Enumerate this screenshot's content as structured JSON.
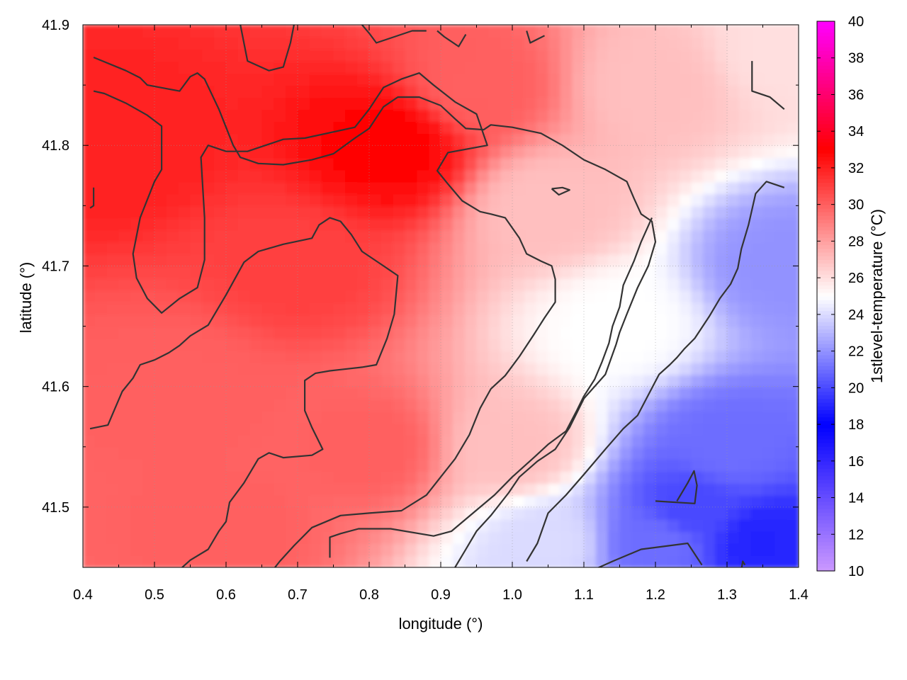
{
  "chart_data": {
    "type": "heatmap",
    "title": "",
    "xlabel": "longitude (°)",
    "ylabel": "latitude (°)",
    "colorbar_label": "1stlevel-temperature (°C)",
    "xlim": [
      0.4,
      1.4
    ],
    "ylim": [
      41.45,
      41.9
    ],
    "x_ticks": [
      "0.4",
      "0.5",
      "0.6",
      "0.7",
      "0.8",
      "0.9",
      "1.0",
      "1.1",
      "1.2",
      "1.3",
      "1.4"
    ],
    "y_ticks": [
      "41.5",
      "41.6",
      "41.7",
      "41.8",
      "41.9"
    ],
    "colorbar_range": [
      10,
      40
    ],
    "colorbar_ticks": [
      "10",
      "12",
      "14",
      "16",
      "18",
      "20",
      "22",
      "24",
      "26",
      "28",
      "30",
      "32",
      "34",
      "36",
      "38",
      "40"
    ],
    "colorscale": [
      {
        "value": 10,
        "color": "#cc99ff"
      },
      {
        "value": 18,
        "color": "#0000ff"
      },
      {
        "value": 25,
        "color": "#ffffff"
      },
      {
        "value": 33,
        "color": "#ff0000"
      },
      {
        "value": 40,
        "color": "#ff00ff"
      }
    ],
    "grid": true,
    "contour_color": "#333333",
    "temperature_field": [
      {
        "lon": 0.45,
        "lat": 41.8,
        "temp": 32
      },
      {
        "lon": 0.83,
        "lat": 41.8,
        "temp": 33
      },
      {
        "lon": 0.7,
        "lat": 41.7,
        "temp": 31
      },
      {
        "lon": 0.55,
        "lat": 41.6,
        "temp": 30
      },
      {
        "lon": 0.8,
        "lat": 41.55,
        "temp": 30
      },
      {
        "lon": 0.6,
        "lat": 41.48,
        "temp": 30
      },
      {
        "lon": 0.95,
        "lat": 41.85,
        "temp": 30
      },
      {
        "lon": 1.05,
        "lat": 41.75,
        "temp": 27
      },
      {
        "lon": 1.2,
        "lat": 41.85,
        "temp": 27
      },
      {
        "lon": 1.38,
        "lat": 41.88,
        "temp": 26
      },
      {
        "lon": 1.0,
        "lat": 41.55,
        "temp": 27
      },
      {
        "lon": 1.15,
        "lat": 41.65,
        "temp": 25
      },
      {
        "lon": 1.05,
        "lat": 41.47,
        "temp": 24
      },
      {
        "lon": 1.38,
        "lat": 41.7,
        "temp": 22
      },
      {
        "lon": 1.3,
        "lat": 41.55,
        "temp": 21
      },
      {
        "lon": 1.25,
        "lat": 41.5,
        "temp": 20
      },
      {
        "lon": 1.35,
        "lat": 41.47,
        "temp": 19
      },
      {
        "lon": 1.2,
        "lat": 41.47,
        "temp": 21
      }
    ],
    "contours": [
      [
        [
          0.415,
          41.873
        ],
        [
          0.46,
          41.862
        ],
        [
          0.48,
          41.856
        ],
        [
          0.49,
          41.85
        ],
        [
          0.535,
          41.845
        ],
        [
          0.55,
          41.857
        ],
        [
          0.56,
          41.86
        ],
        [
          0.57,
          41.855
        ],
        [
          0.59,
          41.83
        ],
        [
          0.61,
          41.8
        ],
        [
          0.62,
          41.79
        ],
        [
          0.63,
          41.788
        ],
        [
          0.645,
          41.785
        ],
        [
          0.68,
          41.784
        ],
        [
          0.72,
          41.788
        ],
        [
          0.75,
          41.793
        ],
        [
          0.78,
          41.806
        ],
        [
          0.8,
          41.814
        ],
        [
          0.82,
          41.832
        ],
        [
          0.84,
          41.84
        ],
        [
          0.87,
          41.84
        ],
        [
          0.9,
          41.833
        ],
        [
          0.92,
          41.822
        ],
        [
          0.935,
          41.814
        ],
        [
          0.96,
          41.813
        ],
        [
          0.97,
          41.817
        ],
        [
          1.0,
          41.815
        ],
        [
          1.04,
          41.81
        ],
        [
          1.07,
          41.8
        ],
        [
          1.1,
          41.788
        ],
        [
          1.13,
          41.78
        ],
        [
          1.16,
          41.77
        ],
        [
          1.17,
          41.756
        ],
        [
          1.18,
          41.743
        ],
        [
          1.195,
          41.737
        ],
        [
          1.2,
          41.72
        ],
        [
          1.19,
          41.7
        ],
        [
          1.175,
          41.682
        ],
        [
          1.16,
          41.66
        ],
        [
          1.15,
          41.645
        ],
        [
          1.145,
          41.635
        ],
        [
          1.13,
          41.61
        ],
        [
          1.1,
          41.59
        ],
        [
          1.08,
          41.566
        ],
        [
          1.06,
          41.548
        ],
        [
          1.035,
          41.538
        ],
        [
          1.01,
          41.525
        ],
        [
          0.995,
          41.512
        ],
        [
          0.97,
          41.493
        ],
        [
          0.95,
          41.48
        ],
        [
          0.935,
          41.465
        ],
        [
          0.92,
          41.45
        ]
      ],
      [
        [
          0.415,
          41.845
        ],
        [
          0.43,
          41.843
        ],
        [
          0.46,
          41.835
        ],
        [
          0.49,
          41.825
        ],
        [
          0.51,
          41.816
        ],
        [
          0.51,
          41.78
        ],
        [
          0.5,
          41.77
        ],
        [
          0.48,
          41.74
        ],
        [
          0.47,
          41.71
        ],
        [
          0.475,
          41.69
        ],
        [
          0.49,
          41.673
        ],
        [
          0.51,
          41.661
        ],
        [
          0.535,
          41.673
        ],
        [
          0.56,
          41.682
        ],
        [
          0.57,
          41.705
        ],
        [
          0.57,
          41.74
        ],
        [
          0.565,
          41.79
        ],
        [
          0.575,
          41.8
        ],
        [
          0.6,
          41.795
        ],
        [
          0.63,
          41.795
        ],
        [
          0.68,
          41.805
        ],
        [
          0.71,
          41.806
        ],
        [
          0.78,
          41.815
        ],
        [
          0.8,
          41.83
        ],
        [
          0.82,
          41.848
        ],
        [
          0.845,
          41.855
        ],
        [
          0.87,
          41.86
        ],
        [
          0.89,
          41.85
        ],
        [
          0.92,
          41.836
        ],
        [
          0.95,
          41.826
        ],
        [
          0.965,
          41.8
        ],
        [
          0.91,
          41.794
        ],
        [
          0.895,
          41.779
        ],
        [
          0.91,
          41.768
        ],
        [
          0.93,
          41.754
        ],
        [
          0.955,
          41.745
        ],
        [
          0.97,
          41.743
        ],
        [
          0.99,
          41.74
        ],
        [
          1.01,
          41.723
        ],
        [
          1.02,
          41.71
        ],
        [
          1.04,
          41.704
        ],
        [
          1.055,
          41.7
        ],
        [
          1.06,
          41.689
        ],
        [
          1.06,
          41.67
        ],
        [
          1.045,
          41.657
        ],
        [
          1.03,
          41.643
        ],
        [
          1.01,
          41.625
        ],
        [
          0.99,
          41.609
        ],
        [
          0.97,
          41.598
        ],
        [
          0.955,
          41.582
        ],
        [
          0.94,
          41.56
        ],
        [
          0.92,
          41.54
        ],
        [
          0.9,
          41.525
        ],
        [
          0.88,
          41.51
        ],
        [
          0.845,
          41.497
        ],
        [
          0.8,
          41.495
        ],
        [
          0.76,
          41.493
        ],
        [
          0.72,
          41.483
        ],
        [
          0.695,
          41.468
        ],
        [
          0.675,
          41.455
        ],
        [
          0.655,
          41.44
        ]
      ],
      [
        [
          0.41,
          41.565
        ],
        [
          0.435,
          41.568
        ],
        [
          0.445,
          41.582
        ],
        [
          0.455,
          41.596
        ],
        [
          0.47,
          41.607
        ],
        [
          0.48,
          41.618
        ],
        [
          0.5,
          41.622
        ],
        [
          0.52,
          41.628
        ],
        [
          0.535,
          41.634
        ],
        [
          0.55,
          41.642
        ],
        [
          0.575,
          41.651
        ],
        [
          0.6,
          41.676
        ],
        [
          0.625,
          41.703
        ],
        [
          0.645,
          41.712
        ],
        [
          0.68,
          41.718
        ],
        [
          0.72,
          41.723
        ],
        [
          0.73,
          41.734
        ],
        [
          0.745,
          41.74
        ],
        [
          0.76,
          41.737
        ],
        [
          0.775,
          41.726
        ],
        [
          0.79,
          41.712
        ],
        [
          0.82,
          41.7
        ],
        [
          0.84,
          41.692
        ],
        [
          0.835,
          41.66
        ],
        [
          0.825,
          41.64
        ],
        [
          0.81,
          41.618
        ],
        [
          0.79,
          41.616
        ],
        [
          0.76,
          41.614
        ],
        [
          0.745,
          41.613
        ],
        [
          0.725,
          41.611
        ],
        [
          0.71,
          41.605
        ],
        [
          0.71,
          41.58
        ],
        [
          0.72,
          41.566
        ],
        [
          0.735,
          41.548
        ],
        [
          0.72,
          41.543
        ],
        [
          0.68,
          41.541
        ],
        [
          0.66,
          41.545
        ],
        [
          0.645,
          41.54
        ],
        [
          0.625,
          41.52
        ],
        [
          0.605,
          41.504
        ],
        [
          0.6,
          41.488
        ],
        [
          0.59,
          41.48
        ],
        [
          0.575,
          41.465
        ],
        [
          0.55,
          41.456
        ],
        [
          0.52,
          41.44
        ]
      ],
      [
        [
          0.745,
          41.458
        ],
        [
          0.745,
          41.475
        ],
        [
          0.76,
          41.478
        ],
        [
          0.785,
          41.482
        ],
        [
          0.83,
          41.482
        ],
        [
          0.89,
          41.476
        ],
        [
          0.915,
          41.48
        ],
        [
          0.935,
          41.49
        ],
        [
          0.955,
          41.5
        ],
        [
          0.975,
          41.51
        ],
        [
          1.0,
          41.525
        ],
        [
          1.03,
          41.541
        ],
        [
          1.05,
          41.552
        ],
        [
          1.075,
          41.563
        ],
        [
          1.09,
          41.58
        ],
        [
          1.1,
          41.592
        ],
        [
          1.115,
          41.606
        ],
        [
          1.125,
          41.62
        ],
        [
          1.135,
          41.636
        ],
        [
          1.14,
          41.65
        ],
        [
          1.15,
          41.666
        ],
        [
          1.155,
          41.684
        ],
        [
          1.17,
          41.704
        ],
        [
          1.18,
          41.72
        ],
        [
          1.195,
          41.74
        ]
      ],
      [
        [
          1.02,
          41.455
        ],
        [
          1.035,
          41.47
        ],
        [
          1.05,
          41.495
        ],
        [
          1.075,
          41.51
        ],
        [
          1.1,
          41.527
        ],
        [
          1.13,
          41.548
        ],
        [
          1.155,
          41.565
        ],
        [
          1.175,
          41.576
        ],
        [
          1.19,
          41.593
        ],
        [
          1.205,
          41.61
        ],
        [
          1.22,
          41.618
        ],
        [
          1.23,
          41.624
        ],
        [
          1.24,
          41.631
        ],
        [
          1.255,
          41.64
        ],
        [
          1.275,
          41.658
        ],
        [
          1.29,
          41.673
        ],
        [
          1.305,
          41.685
        ],
        [
          1.315,
          41.698
        ],
        [
          1.32,
          41.714
        ],
        [
          1.33,
          41.734
        ],
        [
          1.34,
          41.76
        ],
        [
          1.355,
          41.77
        ],
        [
          1.38,
          41.765
        ]
      ],
      [
        [
          1.11,
          41.447
        ],
        [
          1.14,
          41.455
        ],
        [
          1.18,
          41.465
        ],
        [
          1.245,
          41.47
        ],
        [
          1.265,
          41.452
        ]
      ],
      [
        [
          1.2,
          41.505
        ],
        [
          1.255,
          41.503
        ],
        [
          1.258,
          41.518
        ],
        [
          1.254,
          41.53
        ],
        [
          1.245,
          41.52
        ],
        [
          1.23,
          41.505
        ]
      ],
      [
        [
          1.32,
          41.448
        ],
        [
          1.322,
          41.455
        ],
        [
          1.325,
          41.452
        ]
      ],
      [
        [
          1.335,
          41.87
        ],
        [
          1.335,
          41.845
        ],
        [
          1.36,
          41.84
        ],
        [
          1.38,
          41.83
        ]
      ],
      [
        [
          0.415,
          41.765
        ],
        [
          0.415,
          41.75
        ],
        [
          0.41,
          41.748
        ]
      ],
      [
        [
          1.055,
          41.764
        ],
        [
          1.07,
          41.765
        ],
        [
          1.08,
          41.763
        ],
        [
          1.065,
          41.759
        ],
        [
          1.055,
          41.764
        ]
      ],
      [
        [
          0.62,
          41.9
        ],
        [
          0.63,
          41.87
        ],
        [
          0.66,
          41.862
        ],
        [
          0.68,
          41.865
        ],
        [
          0.69,
          41.885
        ],
        [
          0.695,
          41.9
        ]
      ],
      [
        [
          0.79,
          41.9
        ],
        [
          0.8,
          41.893
        ],
        [
          0.81,
          41.885
        ],
        [
          0.835,
          41.89
        ],
        [
          0.86,
          41.895
        ],
        [
          0.88,
          41.895
        ]
      ],
      [
        [
          0.895,
          41.895
        ],
        [
          0.905,
          41.89
        ],
        [
          0.925,
          41.882
        ],
        [
          0.935,
          41.892
        ]
      ],
      [
        [
          1.02,
          41.895
        ],
        [
          1.025,
          41.885
        ],
        [
          1.035,
          41.888
        ],
        [
          1.045,
          41.891
        ]
      ]
    ]
  }
}
